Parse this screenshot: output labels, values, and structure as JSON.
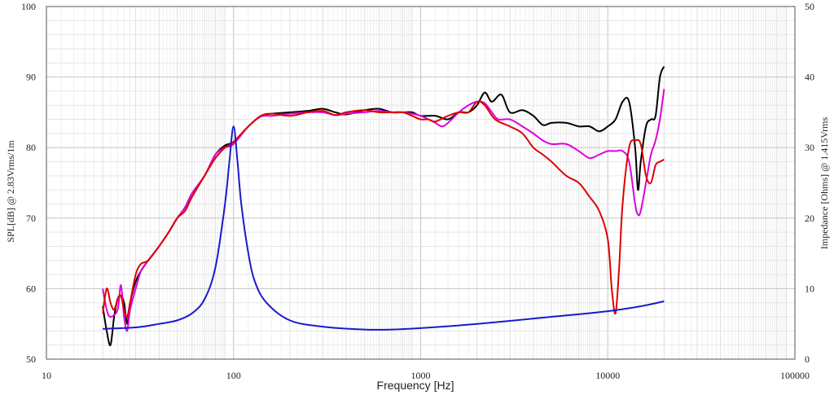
{
  "chart_data": {
    "type": "line",
    "xlabel": "Frequency [Hz]",
    "ylabel_left": "SPL[dB] @ 2.83Vrms/1m",
    "ylabel_right": "Impedance [Ohms] @ 1.415Vrms",
    "xscale": "log",
    "xlim": [
      10,
      100000
    ],
    "ylim_left": [
      50,
      100
    ],
    "ylim_right": [
      0,
      50
    ],
    "grid": true,
    "x_ticks": [
      "10",
      "100",
      "1000",
      "10000",
      "100000"
    ],
    "y_ticks_left": [
      "50",
      "60",
      "70",
      "80",
      "90",
      "100"
    ],
    "y_ticks_right": [
      "0",
      "10",
      "20",
      "30",
      "40",
      "50"
    ],
    "series": [
      {
        "color": "#000000",
        "axis": "left",
        "points": [
          [
            20,
            57.5
          ],
          [
            21,
            54
          ],
          [
            22,
            52
          ],
          [
            23,
            56
          ],
          [
            24,
            58.5
          ],
          [
            25,
            59
          ],
          [
            26,
            58
          ],
          [
            27,
            55
          ],
          [
            28,
            58
          ],
          [
            30,
            61
          ],
          [
            32,
            62.5
          ],
          [
            35,
            64
          ],
          [
            40,
            66
          ],
          [
            45,
            68
          ],
          [
            50,
            70
          ],
          [
            55,
            71.5
          ],
          [
            60,
            73.5
          ],
          [
            70,
            76
          ],
          [
            80,
            79
          ],
          [
            90,
            80.3
          ],
          [
            100,
            80.8
          ],
          [
            120,
            83
          ],
          [
            140,
            84.5
          ],
          [
            160,
            84.8
          ],
          [
            200,
            85
          ],
          [
            250,
            85.2
          ],
          [
            300,
            85.5
          ],
          [
            350,
            85
          ],
          [
            400,
            84.7
          ],
          [
            500,
            85.3
          ],
          [
            600,
            85.5
          ],
          [
            700,
            85
          ],
          [
            800,
            85
          ],
          [
            900,
            85
          ],
          [
            1000,
            84.5
          ],
          [
            1200,
            84.5
          ],
          [
            1400,
            84
          ],
          [
            1600,
            85
          ],
          [
            1800,
            85
          ],
          [
            2000,
            86
          ],
          [
            2200,
            87.8
          ],
          [
            2400,
            86.5
          ],
          [
            2700,
            87.5
          ],
          [
            3000,
            85
          ],
          [
            3500,
            85.3
          ],
          [
            4000,
            84.5
          ],
          [
            4500,
            83.2
          ],
          [
            5000,
            83.5
          ],
          [
            6000,
            83.5
          ],
          [
            7000,
            83
          ],
          [
            8000,
            83
          ],
          [
            9000,
            82.3
          ],
          [
            10000,
            83
          ],
          [
            11000,
            84
          ],
          [
            12000,
            86.5
          ],
          [
            13000,
            86.5
          ],
          [
            14000,
            80
          ],
          [
            14500,
            74
          ],
          [
            15000,
            78
          ],
          [
            16000,
            83
          ],
          [
            17000,
            84
          ],
          [
            18000,
            84.5
          ],
          [
            19000,
            90
          ],
          [
            20000,
            91.5
          ]
        ]
      },
      {
        "color": "#dd00dd",
        "axis": "left",
        "points": [
          [
            20,
            60
          ],
          [
            21,
            57
          ],
          [
            22,
            56
          ],
          [
            24,
            57
          ],
          [
            25,
            60.5
          ],
          [
            26,
            56
          ],
          [
            27,
            54
          ],
          [
            28,
            57
          ],
          [
            30,
            60
          ],
          [
            32,
            62.5
          ],
          [
            35,
            64
          ],
          [
            40,
            66
          ],
          [
            45,
            68
          ],
          [
            50,
            70
          ],
          [
            55,
            71.5
          ],
          [
            60,
            73.5
          ],
          [
            70,
            76
          ],
          [
            80,
            79
          ],
          [
            90,
            80
          ],
          [
            100,
            80.5
          ],
          [
            120,
            83
          ],
          [
            140,
            84.4
          ],
          [
            160,
            84.5
          ],
          [
            200,
            84.8
          ],
          [
            250,
            85
          ],
          [
            300,
            85
          ],
          [
            350,
            84.6
          ],
          [
            400,
            84.8
          ],
          [
            500,
            85
          ],
          [
            600,
            85.2
          ],
          [
            700,
            85
          ],
          [
            800,
            85
          ],
          [
            900,
            84.8
          ],
          [
            1000,
            84.5
          ],
          [
            1100,
            84
          ],
          [
            1200,
            83.5
          ],
          [
            1300,
            83
          ],
          [
            1400,
            83.5
          ],
          [
            1600,
            85
          ],
          [
            1800,
            86
          ],
          [
            2000,
            86.5
          ],
          [
            2200,
            86.3
          ],
          [
            2400,
            85
          ],
          [
            2600,
            84
          ],
          [
            3000,
            84
          ],
          [
            3500,
            83
          ],
          [
            4000,
            82
          ],
          [
            4500,
            81
          ],
          [
            5000,
            80.5
          ],
          [
            6000,
            80.5
          ],
          [
            7000,
            79.5
          ],
          [
            8000,
            78.5
          ],
          [
            9000,
            79
          ],
          [
            10000,
            79.5
          ],
          [
            11000,
            79.5
          ],
          [
            12000,
            79.5
          ],
          [
            13000,
            78
          ],
          [
            14000,
            72
          ],
          [
            14500,
            70.5
          ],
          [
            15000,
            71
          ],
          [
            16000,
            75
          ],
          [
            17000,
            79
          ],
          [
            18000,
            81
          ],
          [
            19000,
            84
          ],
          [
            20000,
            88.3
          ]
        ]
      },
      {
        "color": "#dd0000",
        "axis": "left",
        "points": [
          [
            20,
            56.5
          ],
          [
            21,
            60
          ],
          [
            22,
            58
          ],
          [
            23,
            57
          ],
          [
            24,
            58.5
          ],
          [
            25,
            59
          ],
          [
            26,
            57
          ],
          [
            27,
            56
          ],
          [
            28,
            58
          ],
          [
            30,
            62
          ],
          [
            32,
            63.5
          ],
          [
            35,
            64
          ],
          [
            40,
            66
          ],
          [
            45,
            68
          ],
          [
            50,
            70
          ],
          [
            55,
            71
          ],
          [
            60,
            73
          ],
          [
            70,
            76
          ],
          [
            80,
            78.5
          ],
          [
            90,
            80
          ],
          [
            100,
            80.8
          ],
          [
            120,
            83
          ],
          [
            140,
            84.5
          ],
          [
            160,
            84.8
          ],
          [
            200,
            84.5
          ],
          [
            250,
            85
          ],
          [
            300,
            85.2
          ],
          [
            350,
            84.6
          ],
          [
            400,
            85
          ],
          [
            500,
            85.3
          ],
          [
            600,
            85
          ],
          [
            700,
            85
          ],
          [
            800,
            85
          ],
          [
            900,
            84.5
          ],
          [
            1000,
            84
          ],
          [
            1100,
            84
          ],
          [
            1200,
            83.7
          ],
          [
            1400,
            84.5
          ],
          [
            1600,
            85
          ],
          [
            1800,
            85
          ],
          [
            2000,
            86.5
          ],
          [
            2200,
            86
          ],
          [
            2500,
            84
          ],
          [
            3000,
            83
          ],
          [
            3500,
            82
          ],
          [
            4000,
            80
          ],
          [
            4500,
            79
          ],
          [
            5000,
            78
          ],
          [
            6000,
            76
          ],
          [
            7000,
            75
          ],
          [
            8000,
            73
          ],
          [
            9000,
            71
          ],
          [
            10000,
            67
          ],
          [
            10500,
            60
          ],
          [
            11000,
            56.5
          ],
          [
            11500,
            63
          ],
          [
            12000,
            72
          ],
          [
            13000,
            80
          ],
          [
            14000,
            81
          ],
          [
            15000,
            80.5
          ],
          [
            16000,
            76
          ],
          [
            17000,
            75
          ],
          [
            18000,
            77.5
          ],
          [
            19000,
            78
          ],
          [
            20000,
            78.3
          ]
        ]
      },
      {
        "color": "#1a1acc",
        "axis": "right",
        "points": [
          [
            20,
            4.3
          ],
          [
            30,
            4.5
          ],
          [
            40,
            5
          ],
          [
            50,
            5.5
          ],
          [
            60,
            6.5
          ],
          [
            70,
            8.5
          ],
          [
            80,
            13
          ],
          [
            90,
            22
          ],
          [
            95,
            28
          ],
          [
            100,
            33
          ],
          [
            105,
            28
          ],
          [
            110,
            22
          ],
          [
            120,
            15
          ],
          [
            130,
            11
          ],
          [
            150,
            8
          ],
          [
            200,
            5.5
          ],
          [
            300,
            4.6
          ],
          [
            500,
            4.2
          ],
          [
            700,
            4.2
          ],
          [
            1000,
            4.4
          ],
          [
            2000,
            5
          ],
          [
            5000,
            6
          ],
          [
            10000,
            6.8
          ],
          [
            15000,
            7.5
          ],
          [
            20000,
            8.2
          ]
        ]
      }
    ]
  }
}
